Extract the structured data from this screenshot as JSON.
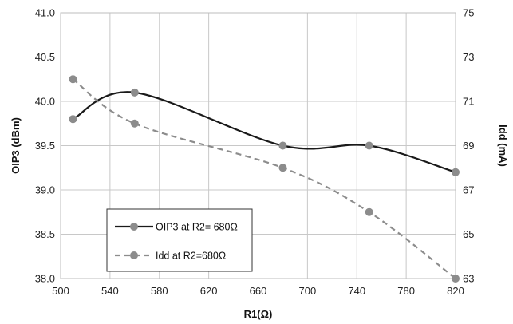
{
  "chart_data": {
    "type": "line",
    "title": "",
    "xlabel": "R1(Ω)",
    "ylabel_left": "OIP3 (dBm)",
    "ylabel_right": "Idd (mA)",
    "xlim": [
      500,
      820
    ],
    "x_ticks": [
      500,
      540,
      580,
      620,
      660,
      700,
      740,
      780,
      820
    ],
    "ylim_left": [
      38.0,
      41.0
    ],
    "y_left_ticks": [
      "38.0",
      "38.5",
      "39.0",
      "39.5",
      "40.0",
      "40.5",
      "41.0"
    ],
    "ylim_right": [
      63,
      75
    ],
    "y_right_ticks": [
      "63",
      "65",
      "67",
      "69",
      "71",
      "73",
      "75"
    ],
    "grid": true,
    "legend_position": "bottom-left",
    "series": [
      {
        "name": "OIP3 at R2= 680Ω",
        "axis": "left",
        "style": "solid",
        "color": "#1a1a1a",
        "x": [
          510,
          560,
          680,
          750,
          820
        ],
        "y": [
          39.8,
          40.1,
          39.5,
          39.5,
          39.2
        ]
      },
      {
        "name": "Idd at R2=680Ω",
        "axis": "right",
        "style": "dashed",
        "color": "#8c8c8c",
        "x": [
          510,
          560,
          680,
          750,
          820
        ],
        "y": [
          72,
          70,
          68,
          66,
          63
        ]
      }
    ],
    "marker_color": "#8c8c8c"
  }
}
